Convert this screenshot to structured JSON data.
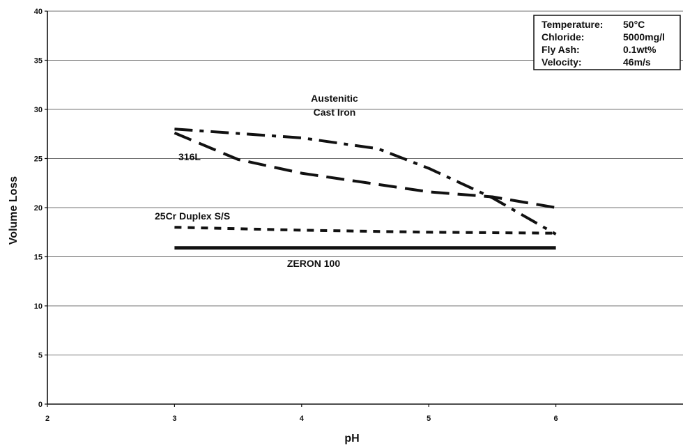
{
  "chart_data": {
    "type": "line",
    "title": "",
    "xlabel": "pH",
    "ylabel": "Volume Loss",
    "xlim": [
      2,
      7
    ],
    "ylim": [
      0,
      40
    ],
    "x_ticks": [
      2,
      3,
      4,
      5,
      6
    ],
    "y_ticks": [
      0,
      5,
      10,
      15,
      20,
      25,
      30,
      35,
      40
    ],
    "grid": "horizontal",
    "conditions_box": {
      "placement": "top-right",
      "lines": [
        {
          "label": "Temperature:",
          "value": "50°C"
        },
        {
          "label": "Chloride:",
          "value": "5000mg/l"
        },
        {
          "label": "Fly Ash:",
          "value": "0.1wt%"
        },
        {
          "label": "Velocity:",
          "value": "46m/s"
        }
      ]
    },
    "series": [
      {
        "name": "Austenitic Cast Iron",
        "label_lines": [
          "Austenitic",
          "Cast Iron"
        ],
        "style": "dash-dot",
        "points": [
          [
            3,
            28
          ],
          [
            4,
            27.1
          ],
          [
            4.6,
            26
          ],
          [
            5,
            24
          ],
          [
            5.5,
            21
          ],
          [
            6,
            17.3
          ]
        ]
      },
      {
        "name": "316L",
        "label_lines": [
          "316L"
        ],
        "style": "long-dash",
        "points": [
          [
            3,
            27.6
          ],
          [
            3.5,
            24.9
          ],
          [
            4,
            23.5
          ],
          [
            5,
            21.6
          ],
          [
            5.5,
            21.1
          ],
          [
            6,
            20
          ]
        ]
      },
      {
        "name": "25Cr Duplex S/S",
        "label_lines": [
          "25Cr Duplex S/S"
        ],
        "style": "short-dash",
        "points": [
          [
            3,
            18
          ],
          [
            4,
            17.7
          ],
          [
            5,
            17.5
          ],
          [
            6,
            17.4
          ]
        ]
      },
      {
        "name": "ZERON 100",
        "label_lines": [
          "ZERON 100"
        ],
        "style": "solid",
        "points": [
          [
            3,
            15.9
          ],
          [
            6,
            15.9
          ]
        ]
      }
    ]
  }
}
